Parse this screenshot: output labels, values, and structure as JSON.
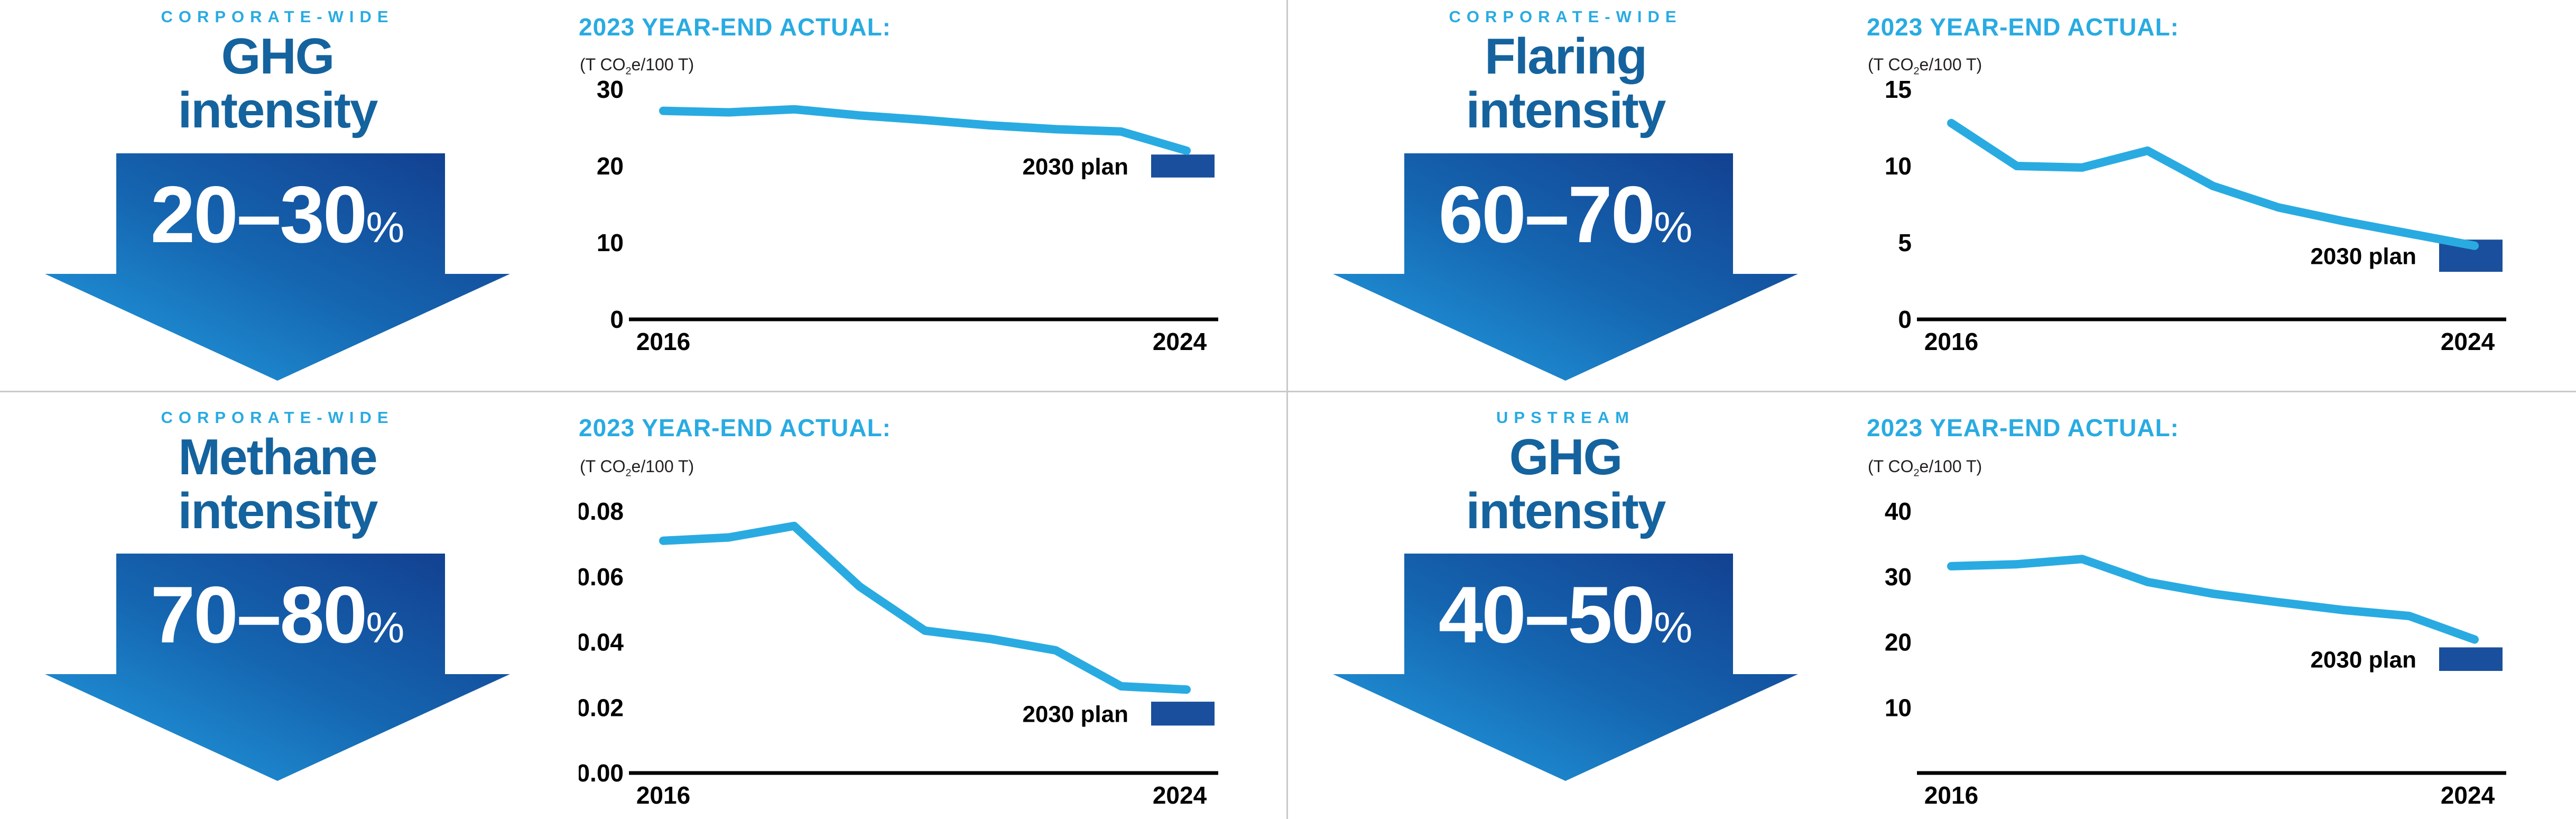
{
  "colors": {
    "accent_cyan": "#29ABE2",
    "title_blue": "#14639E",
    "arrow_gradient_dark": "#123B8C",
    "arrow_gradient_mid": "#1565B0",
    "arrow_gradient_light": "#23A2E4",
    "plan_bar_blue": "#1A4F9D",
    "line_cyan": "#29ABE2",
    "axis_black": "#000000",
    "divider_gray": "#C9C9C9"
  },
  "units": {
    "pre": "(T CO",
    "sub": "2",
    "post": "e/100 T)"
  },
  "quadrants": [
    {
      "kicker": "CORPORATE-WIDE",
      "title_line1": "GHG",
      "title_line2": "intensity",
      "arrow_range": "20–30",
      "arrow_percent": "%",
      "chart_heading": "2023 YEAR-END ACTUAL:"
    },
    {
      "kicker": "CORPORATE-WIDE",
      "title_line1": "Flaring",
      "title_line2": "intensity",
      "arrow_range": "60–70",
      "arrow_percent": "%",
      "chart_heading": "2023 YEAR-END ACTUAL:"
    },
    {
      "kicker": "CORPORATE-WIDE",
      "title_line1": "Methane",
      "title_line2": "intensity",
      "arrow_range": "70–80",
      "arrow_percent": "%",
      "chart_heading": "2023 YEAR-END ACTUAL:"
    },
    {
      "kicker": "UPSTREAM",
      "title_line1": "GHG",
      "title_line2": "intensity",
      "arrow_range": "40–50",
      "arrow_percent": "%",
      "chart_heading": "2023 YEAR-END ACTUAL:"
    }
  ],
  "chart_data": [
    {
      "type": "line",
      "title": "2023 YEAR-END ACTUAL:",
      "unit": "(T CO₂e/100 T)",
      "x": [
        2016,
        2017,
        2018,
        2019,
        2020,
        2021,
        2022,
        2023,
        2024
      ],
      "values": [
        27.2,
        27.0,
        27.4,
        26.6,
        26.0,
        25.3,
        24.8,
        24.5,
        22.0
      ],
      "ylim": [
        0,
        30
      ],
      "y_ticks": [
        0,
        10,
        20,
        30
      ],
      "y_tick_labels": [
        "0",
        "10",
        "20",
        "30"
      ],
      "x_tick_labels": [
        "2016",
        "2024"
      ],
      "plan": {
        "label": "2030 plan",
        "range": [
          18.5,
          21.5
        ]
      },
      "line_color": "#29ABE2",
      "plan_color": "#1A4F9D",
      "grid": false,
      "legend": "none"
    },
    {
      "type": "line",
      "title": "2023 YEAR-END ACTUAL:",
      "unit": "(T CO₂e/100 T)",
      "x": [
        2016,
        2017,
        2018,
        2019,
        2020,
        2021,
        2022,
        2023,
        2024
      ],
      "values": [
        12.8,
        10.0,
        9.9,
        11.0,
        8.7,
        7.3,
        6.4,
        5.6,
        4.8
      ],
      "ylim": [
        0,
        15
      ],
      "y_ticks": [
        0,
        5,
        10,
        15
      ],
      "y_tick_labels": [
        "0",
        "5",
        "10",
        "15"
      ],
      "x_tick_labels": [
        "2016",
        "2024"
      ],
      "plan": {
        "label": "2030 plan",
        "range": [
          3.1,
          5.2
        ]
      },
      "line_color": "#29ABE2",
      "plan_color": "#1A4F9D",
      "grid": false,
      "legend": "none"
    },
    {
      "type": "line",
      "title": "2023 YEAR-END ACTUAL:",
      "unit": "(T CO₂e/100 T)",
      "x": [
        2016,
        2017,
        2018,
        2019,
        2020,
        2021,
        2022,
        2023,
        2024
      ],
      "values": [
        0.071,
        0.072,
        0.0755,
        0.057,
        0.0435,
        0.041,
        0.0375,
        0.0265,
        0.0255
      ],
      "ylim": [
        0,
        0.08
      ],
      "y_ticks": [
        0,
        0.02,
        0.04,
        0.06,
        0.08
      ],
      "y_tick_labels": [
        "0.00",
        "0.02",
        "0.04",
        "0.06",
        "0.08"
      ],
      "x_tick_labels": [
        "2016",
        "2024"
      ],
      "plan": {
        "label": "2030 plan",
        "range": [
          0.0145,
          0.0218
        ]
      },
      "line_color": "#29ABE2",
      "plan_color": "#1A4F9D",
      "grid": false,
      "legend": "none"
    },
    {
      "type": "line",
      "title": "2023 YEAR-END ACTUAL:",
      "unit": "(T CO₂e/100 T)",
      "x": [
        2016,
        2017,
        2018,
        2019,
        2020,
        2021,
        2022,
        2023,
        2024
      ],
      "values": [
        31.6,
        31.9,
        32.7,
        29.2,
        27.4,
        26.1,
        24.9,
        24.0,
        20.4
      ],
      "ylim": [
        0,
        40
      ],
      "y_ticks": [
        10,
        20,
        30,
        40
      ],
      "y_tick_labels": [
        "10",
        "20",
        "30",
        "40"
      ],
      "x_tick_labels": [
        "2016",
        "2024"
      ],
      "plan": {
        "label": "2030 plan",
        "range": [
          15.6,
          19.2
        ]
      },
      "line_color": "#29ABE2",
      "plan_color": "#1A4F9D",
      "grid": false,
      "legend": "none"
    }
  ]
}
